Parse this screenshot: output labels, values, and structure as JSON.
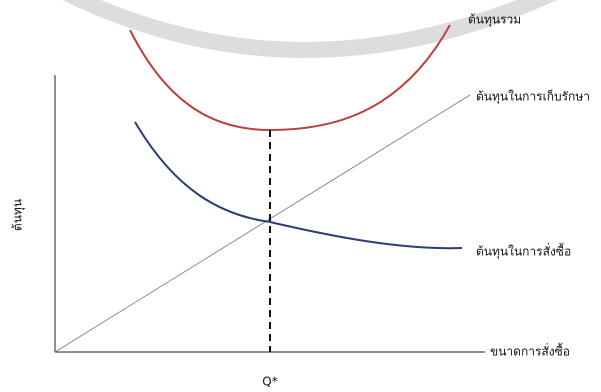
{
  "diagram": {
    "curves": {
      "total_cost": "ต้นทุนรวม",
      "holding_cost": "ต้นทุนในการเก็บรักษา",
      "ordering_cost": "ต้นทุนในการสั่งซื้อ"
    },
    "y_axis_label": "ต้นทุน",
    "x_axis_label": "ขนาดการสั่งซื้อ",
    "optimum_label": "Q*"
  }
}
